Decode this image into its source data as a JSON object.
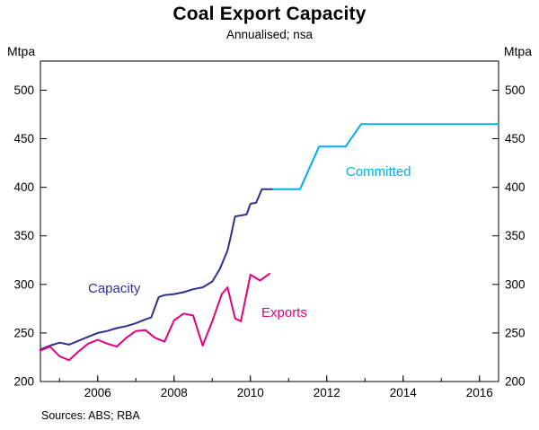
{
  "chart_data": {
    "type": "line",
    "title": "Coal Export Capacity",
    "subtitle": "Annualised; nsa",
    "unit": "Mtpa",
    "sources": "Sources: ABS; RBA",
    "ylim": [
      200,
      530
    ],
    "yticks": [
      200,
      250,
      300,
      350,
      400,
      450,
      500
    ],
    "xlim": [
      2004.5,
      2016.5
    ],
    "xticks": [
      2006,
      2008,
      2010,
      2012,
      2014,
      2016
    ],
    "minor_xticks": [
      2005,
      2006,
      2007,
      2008,
      2009,
      2010,
      2011,
      2012,
      2013,
      2014,
      2015,
      2016
    ],
    "grid": false,
    "legend_position": "inline-labels",
    "series": [
      {
        "name": "Capacity",
        "color": "#2e3192",
        "points": [
          [
            2004.5,
            233
          ],
          [
            2004.75,
            237
          ],
          [
            2005.0,
            240
          ],
          [
            2005.25,
            238
          ],
          [
            2005.5,
            242
          ],
          [
            2005.75,
            246
          ],
          [
            2006.0,
            250
          ],
          [
            2006.25,
            252
          ],
          [
            2006.5,
            255
          ],
          [
            2006.75,
            257
          ],
          [
            2007.0,
            260
          ],
          [
            2007.25,
            264
          ],
          [
            2007.4,
            266
          ],
          [
            2007.6,
            287
          ],
          [
            2007.75,
            289
          ],
          [
            2008.0,
            290
          ],
          [
            2008.25,
            292
          ],
          [
            2008.5,
            295
          ],
          [
            2008.75,
            297
          ],
          [
            2009.0,
            303
          ],
          [
            2009.2,
            316
          ],
          [
            2009.4,
            335
          ],
          [
            2009.5,
            352
          ],
          [
            2009.6,
            370
          ],
          [
            2009.9,
            372
          ],
          [
            2010.0,
            383
          ],
          [
            2010.15,
            384
          ],
          [
            2010.3,
            398
          ],
          [
            2010.6,
            398
          ]
        ]
      },
      {
        "name": "Committed",
        "color": "#00aeef",
        "points": [
          [
            2010.6,
            398
          ],
          [
            2011.3,
            398
          ],
          [
            2011.8,
            442
          ],
          [
            2012.5,
            442
          ],
          [
            2012.6,
            448
          ],
          [
            2012.9,
            465
          ],
          [
            2016.5,
            465
          ]
        ]
      },
      {
        "name": "Exports",
        "color": "#e2017b",
        "points": [
          [
            2004.5,
            232
          ],
          [
            2004.75,
            236
          ],
          [
            2005.0,
            226
          ],
          [
            2005.25,
            222
          ],
          [
            2005.5,
            231
          ],
          [
            2005.75,
            239
          ],
          [
            2006.0,
            243
          ],
          [
            2006.25,
            239
          ],
          [
            2006.5,
            236
          ],
          [
            2006.75,
            245
          ],
          [
            2007.0,
            252
          ],
          [
            2007.25,
            253
          ],
          [
            2007.5,
            245
          ],
          [
            2007.75,
            241
          ],
          [
            2008.0,
            263
          ],
          [
            2008.25,
            270
          ],
          [
            2008.5,
            268
          ],
          [
            2008.75,
            237
          ],
          [
            2009.0,
            262
          ],
          [
            2009.25,
            290
          ],
          [
            2009.4,
            297
          ],
          [
            2009.6,
            265
          ],
          [
            2009.75,
            262
          ],
          [
            2010.0,
            310
          ],
          [
            2010.25,
            304
          ],
          [
            2010.5,
            311
          ]
        ]
      }
    ]
  }
}
